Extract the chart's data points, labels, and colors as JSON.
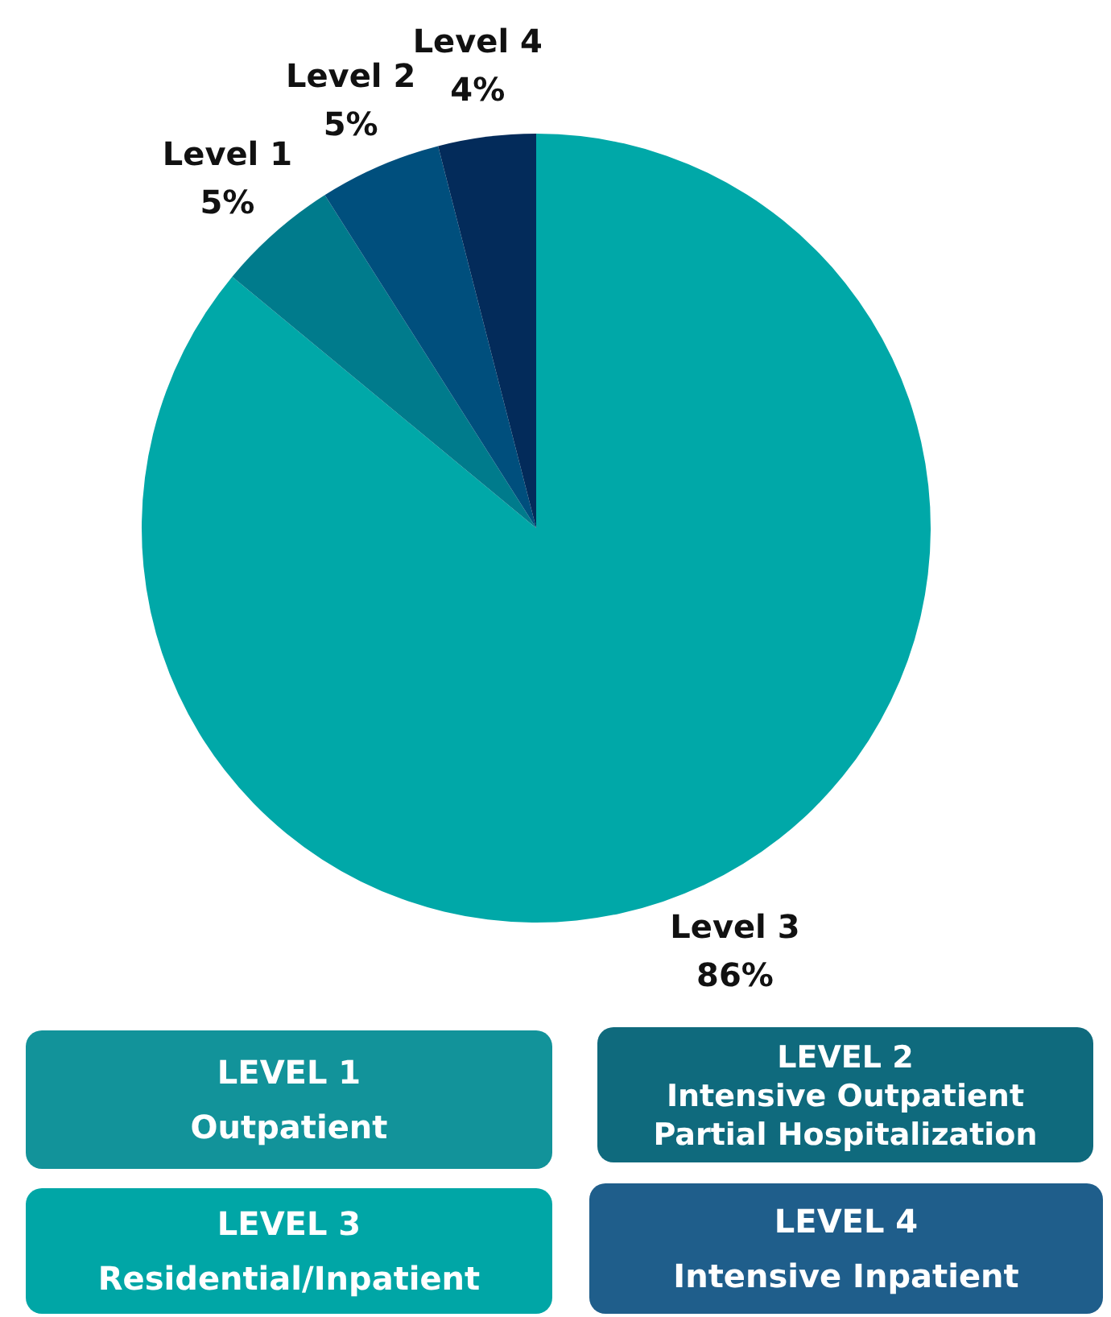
{
  "chart_data": {
    "type": "pie",
    "categories": [
      "Level 3",
      "Level 1",
      "Level 2",
      "Level 4"
    ],
    "values": [
      86,
      5,
      5,
      4
    ],
    "colors": [
      "#00a8a8",
      "#007b8c",
      "#004f7d",
      "#032b5a"
    ],
    "value_labels": [
      "86%",
      "5%",
      "5%",
      "4%"
    ],
    "annotations": [
      "LEVEL 1\nOutpatient",
      "LEVEL 2\nIntensive Outpatient\nPartial Hospitalization",
      "LEVEL 3\nResidential/Inpatient",
      "LEVEL 4\nIntensive Inpatient"
    ]
  }
}
